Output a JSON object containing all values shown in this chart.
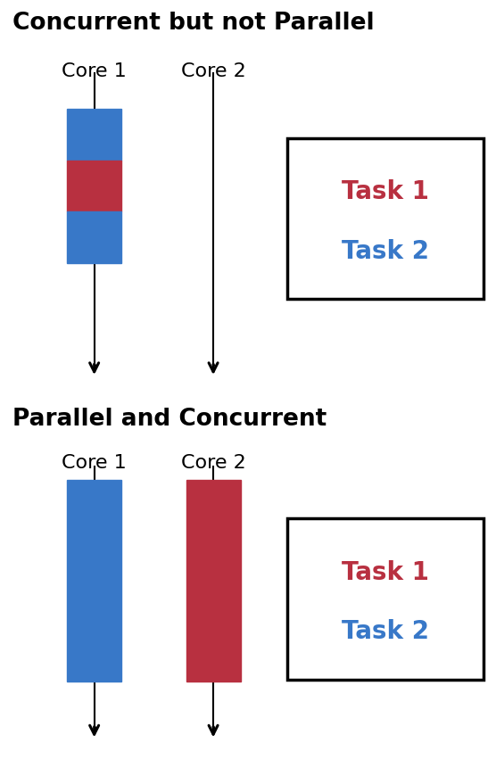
{
  "title1": "Concurrent but not Parallel",
  "title2": "Parallel and Concurrent",
  "blue_color": "#3878C8",
  "red_color": "#B83040",
  "black_color": "#000000",
  "white_color": "#ffffff",
  "task1_label": "Task 1",
  "task2_label": "Task 2",
  "core1_label": "Core 1",
  "core2_label": "Core 2",
  "title_fontsize": 19,
  "core_fontsize": 16,
  "task_fontsize": 20,
  "bg_color": "#ffffff",
  "xlim": [
    0,
    10
  ],
  "ylim": [
    0,
    17
  ]
}
